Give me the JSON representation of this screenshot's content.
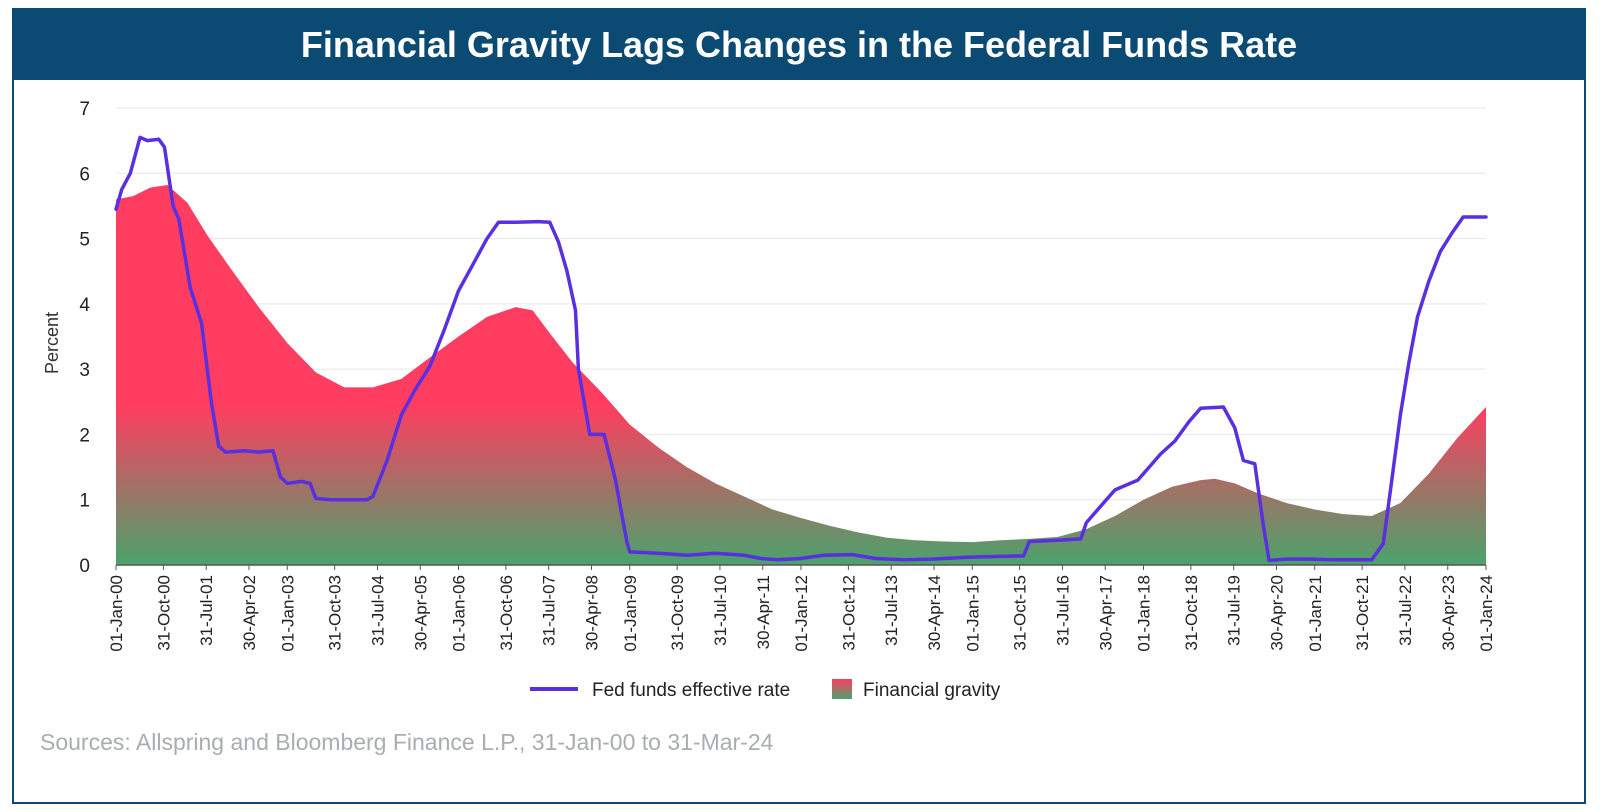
{
  "colors": {
    "title_bg": "#0b4a73",
    "line": "#5a2fe0",
    "gravity_top": "#ff3d60",
    "gravity_bottom": "#4aa36c",
    "grid": "#e4e6ea",
    "axis_text": "#222222"
  },
  "chart_data": {
    "type": "area+line",
    "title": "Financial Gravity Lags Changes in the Federal Funds Rate",
    "ylabel": "Percent",
    "xlabel": "",
    "ylim": [
      0,
      7
    ],
    "yticks": [
      0,
      1,
      2,
      3,
      4,
      5,
      6,
      7
    ],
    "xlim": [
      2000.0,
      2024.0
    ],
    "grid": "horizontal",
    "x_ticks": [
      {
        "label": "01-Jan-00",
        "x": 2000.0
      },
      {
        "label": "31-Oct-00",
        "x": 2000.83
      },
      {
        "label": "31-Jul-01",
        "x": 2001.58
      },
      {
        "label": "30-Apr-02",
        "x": 2002.33
      },
      {
        "label": "01-Jan-03",
        "x": 2003.0
      },
      {
        "label": "31-Oct-03",
        "x": 2003.83
      },
      {
        "label": "31-Jul-04",
        "x": 2004.58
      },
      {
        "label": "30-Apr-05",
        "x": 2005.33
      },
      {
        "label": "01-Jan-06",
        "x": 2006.0
      },
      {
        "label": "31-Oct-06",
        "x": 2006.83
      },
      {
        "label": "31-Jul-07",
        "x": 2007.58
      },
      {
        "label": "30-Apr-08",
        "x": 2008.33
      },
      {
        "label": "01-Jan-09",
        "x": 2009.0
      },
      {
        "label": "31-Oct-09",
        "x": 2009.83
      },
      {
        "label": "31-Jul-10",
        "x": 2010.58
      },
      {
        "label": "30-Apr-11",
        "x": 2011.33
      },
      {
        "label": "01-Jan-12",
        "x": 2012.0
      },
      {
        "label": "31-Oct-12",
        "x": 2012.83
      },
      {
        "label": "31-Jul-13",
        "x": 2013.58
      },
      {
        "label": "30-Apr-14",
        "x": 2014.33
      },
      {
        "label": "01-Jan-15",
        "x": 2015.0
      },
      {
        "label": "31-Oct-15",
        "x": 2015.83
      },
      {
        "label": "31-Jul-16",
        "x": 2016.58
      },
      {
        "label": "30-Apr-17",
        "x": 2017.33
      },
      {
        "label": "01-Jan-18",
        "x": 2018.0
      },
      {
        "label": "31-Oct-18",
        "x": 2018.83
      },
      {
        "label": "31-Jul-19",
        "x": 2019.58
      },
      {
        "label": "30-Apr-20",
        "x": 2020.33
      },
      {
        "label": "01-Jan-21",
        "x": 2021.0
      },
      {
        "label": "31-Oct-21",
        "x": 2021.83
      },
      {
        "label": "31-Jul-22",
        "x": 2022.58
      },
      {
        "label": "30-Apr-23",
        "x": 2023.33
      },
      {
        "label": "01-Jan-24",
        "x": 2024.0
      }
    ],
    "legend": {
      "placement": "bottom-center",
      "items": [
        "Fed funds effective rate",
        "Financial gravity"
      ]
    },
    "series": [
      {
        "name": "Fed funds effective rate",
        "kind": "line",
        "points": [
          [
            2000.0,
            5.45
          ],
          [
            2000.1,
            5.75
          ],
          [
            2000.25,
            6.0
          ],
          [
            2000.42,
            6.55
          ],
          [
            2000.55,
            6.5
          ],
          [
            2000.75,
            6.52
          ],
          [
            2000.85,
            6.4
          ],
          [
            2001.0,
            5.5
          ],
          [
            2001.1,
            5.3
          ],
          [
            2001.3,
            4.25
          ],
          [
            2001.5,
            3.7
          ],
          [
            2001.67,
            2.5
          ],
          [
            2001.8,
            1.82
          ],
          [
            2001.92,
            1.73
          ],
          [
            2002.25,
            1.75
          ],
          [
            2002.5,
            1.73
          ],
          [
            2002.75,
            1.75
          ],
          [
            2002.88,
            1.35
          ],
          [
            2003.0,
            1.25
          ],
          [
            2003.25,
            1.28
          ],
          [
            2003.4,
            1.25
          ],
          [
            2003.5,
            1.02
          ],
          [
            2003.75,
            1.0
          ],
          [
            2004.0,
            1.0
          ],
          [
            2004.4,
            1.0
          ],
          [
            2004.5,
            1.05
          ],
          [
            2004.75,
            1.6
          ],
          [
            2005.0,
            2.3
          ],
          [
            2005.25,
            2.7
          ],
          [
            2005.5,
            3.05
          ],
          [
            2005.75,
            3.6
          ],
          [
            2006.0,
            4.2
          ],
          [
            2006.25,
            4.6
          ],
          [
            2006.5,
            5.0
          ],
          [
            2006.7,
            5.25
          ],
          [
            2007.0,
            5.25
          ],
          [
            2007.4,
            5.26
          ],
          [
            2007.6,
            5.25
          ],
          [
            2007.75,
            4.95
          ],
          [
            2007.9,
            4.5
          ],
          [
            2008.05,
            3.9
          ],
          [
            2008.1,
            3.0
          ],
          [
            2008.3,
            2.0
          ],
          [
            2008.55,
            2.0
          ],
          [
            2008.75,
            1.3
          ],
          [
            2008.95,
            0.35
          ],
          [
            2009.0,
            0.2
          ],
          [
            2009.5,
            0.18
          ],
          [
            2010.0,
            0.15
          ],
          [
            2010.5,
            0.18
          ],
          [
            2011.0,
            0.15
          ],
          [
            2011.3,
            0.1
          ],
          [
            2011.6,
            0.08
          ],
          [
            2012.0,
            0.1
          ],
          [
            2012.4,
            0.15
          ],
          [
            2012.9,
            0.16
          ],
          [
            2013.3,
            0.1
          ],
          [
            2013.8,
            0.08
          ],
          [
            2014.3,
            0.09
          ],
          [
            2014.9,
            0.12
          ],
          [
            2015.4,
            0.13
          ],
          [
            2015.9,
            0.14
          ],
          [
            2016.0,
            0.36
          ],
          [
            2016.5,
            0.38
          ],
          [
            2016.9,
            0.4
          ],
          [
            2017.0,
            0.65
          ],
          [
            2017.25,
            0.9
          ],
          [
            2017.5,
            1.15
          ],
          [
            2017.9,
            1.3
          ],
          [
            2018.1,
            1.5
          ],
          [
            2018.3,
            1.7
          ],
          [
            2018.55,
            1.9
          ],
          [
            2018.8,
            2.2
          ],
          [
            2019.0,
            2.4
          ],
          [
            2019.4,
            2.42
          ],
          [
            2019.6,
            2.1
          ],
          [
            2019.75,
            1.6
          ],
          [
            2019.95,
            1.55
          ],
          [
            2020.1,
            0.6
          ],
          [
            2020.2,
            0.07
          ],
          [
            2020.5,
            0.09
          ],
          [
            2020.9,
            0.09
          ],
          [
            2021.3,
            0.08
          ],
          [
            2021.7,
            0.08
          ],
          [
            2022.0,
            0.08
          ],
          [
            2022.2,
            0.33
          ],
          [
            2022.35,
            1.3
          ],
          [
            2022.5,
            2.3
          ],
          [
            2022.65,
            3.1
          ],
          [
            2022.8,
            3.8
          ],
          [
            2023.0,
            4.35
          ],
          [
            2023.2,
            4.8
          ],
          [
            2023.4,
            5.08
          ],
          [
            2023.6,
            5.33
          ],
          [
            2024.0,
            5.33
          ]
        ]
      },
      {
        "name": "Financial gravity",
        "kind": "area",
        "points": [
          [
            2000.0,
            5.6
          ],
          [
            2000.3,
            5.65
          ],
          [
            2000.6,
            5.78
          ],
          [
            2000.9,
            5.82
          ],
          [
            2001.25,
            5.55
          ],
          [
            2001.6,
            5.05
          ],
          [
            2002.0,
            4.55
          ],
          [
            2002.5,
            3.95
          ],
          [
            2003.0,
            3.4
          ],
          [
            2003.5,
            2.95
          ],
          [
            2004.0,
            2.72
          ],
          [
            2004.5,
            2.72
          ],
          [
            2005.0,
            2.85
          ],
          [
            2005.5,
            3.18
          ],
          [
            2006.0,
            3.5
          ],
          [
            2006.5,
            3.8
          ],
          [
            2007.0,
            3.95
          ],
          [
            2007.3,
            3.9
          ],
          [
            2007.6,
            3.55
          ],
          [
            2008.0,
            3.1
          ],
          [
            2008.5,
            2.65
          ],
          [
            2009.0,
            2.15
          ],
          [
            2009.5,
            1.8
          ],
          [
            2010.0,
            1.5
          ],
          [
            2010.5,
            1.25
          ],
          [
            2011.0,
            1.05
          ],
          [
            2011.5,
            0.85
          ],
          [
            2012.0,
            0.72
          ],
          [
            2012.5,
            0.6
          ],
          [
            2013.0,
            0.5
          ],
          [
            2013.5,
            0.42
          ],
          [
            2014.0,
            0.38
          ],
          [
            2014.5,
            0.36
          ],
          [
            2015.0,
            0.35
          ],
          [
            2015.5,
            0.38
          ],
          [
            2016.0,
            0.4
          ],
          [
            2016.5,
            0.43
          ],
          [
            2017.0,
            0.55
          ],
          [
            2017.5,
            0.75
          ],
          [
            2018.0,
            1.0
          ],
          [
            2018.5,
            1.2
          ],
          [
            2019.0,
            1.3
          ],
          [
            2019.25,
            1.32
          ],
          [
            2019.6,
            1.25
          ],
          [
            2020.0,
            1.1
          ],
          [
            2020.5,
            0.95
          ],
          [
            2021.0,
            0.85
          ],
          [
            2021.5,
            0.78
          ],
          [
            2022.0,
            0.75
          ],
          [
            2022.5,
            0.95
          ],
          [
            2023.0,
            1.4
          ],
          [
            2023.5,
            1.95
          ],
          [
            2024.0,
            2.42
          ]
        ]
      }
    ],
    "source_note": "Sources: Allspring and Bloomberg Finance L.P., 31-Jan-00 to 31-Mar-24"
  }
}
